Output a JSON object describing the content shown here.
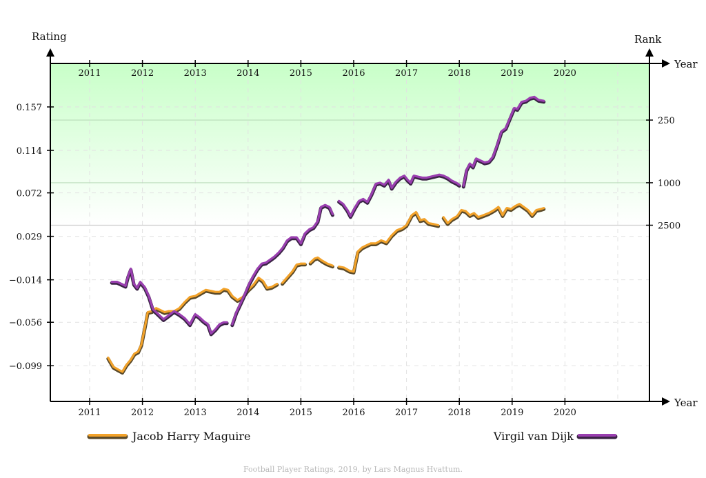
{
  "chart_data": {
    "type": "line",
    "axes": {
      "left_label": "Rating",
      "right_label": "Rank",
      "x_label": "Year",
      "x_ticks": [
        "2011",
        "2012",
        "2013",
        "2014",
        "2015",
        "2016",
        "2017",
        "2018",
        "2019",
        "2020"
      ],
      "x_range": [
        2010.7,
        2022.0
      ],
      "y_range": [
        -0.135,
        0.2
      ],
      "y_ticks": [
        {
          "value": 0.157,
          "label": "0.157"
        },
        {
          "value": 0.114,
          "label": "0.114"
        },
        {
          "value": 0.072,
          "label": "0.072"
        },
        {
          "value": 0.029,
          "label": "0.029"
        },
        {
          "value": -0.014,
          "label": "−0.014"
        },
        {
          "value": -0.056,
          "label": "−0.056"
        },
        {
          "value": -0.099,
          "label": "−0.099"
        }
      ],
      "rank_ticks": [
        {
          "rating": 0.144,
          "label": "250"
        },
        {
          "rating": 0.082,
          "label": "1000"
        },
        {
          "rating": 0.04,
          "label": "2500"
        }
      ],
      "grid": true,
      "top_band": {
        "from": 0.04,
        "to": 0.2,
        "color": "#c8ffc8"
      }
    },
    "series": [
      {
        "name": "Jacob Harry Maguire",
        "color": "#f2a22a",
        "legend_position": "bottom-left",
        "segments": [
          [
            [
              2011.35,
              -0.091
            ],
            [
              2011.45,
              -0.1
            ],
            [
              2011.55,
              -0.103
            ],
            [
              2011.62,
              -0.105
            ],
            [
              2011.7,
              -0.098
            ],
            [
              2011.78,
              -0.093
            ],
            [
              2011.85,
              -0.087
            ],
            [
              2011.92,
              -0.085
            ],
            [
              2011.98,
              -0.078
            ],
            [
              2012.05,
              -0.06
            ],
            [
              2012.1,
              -0.046
            ],
            [
              2012.18,
              -0.045
            ],
            [
              2012.26,
              -0.042
            ],
            [
              2012.34,
              -0.044
            ],
            [
              2012.42,
              -0.046
            ],
            [
              2012.5,
              -0.045
            ],
            [
              2012.6,
              -0.045
            ],
            [
              2012.7,
              -0.042
            ],
            [
              2012.8,
              -0.036
            ],
            [
              2012.9,
              -0.031
            ],
            [
              2013.0,
              -0.03
            ],
            [
              2013.1,
              -0.027
            ],
            [
              2013.2,
              -0.024
            ],
            [
              2013.3,
              -0.025
            ],
            [
              2013.38,
              -0.026
            ],
            [
              2013.46,
              -0.026
            ],
            [
              2013.54,
              -0.023
            ],
            [
              2013.62,
              -0.024
            ],
            [
              2013.7,
              -0.03
            ],
            [
              2013.8,
              -0.034
            ],
            [
              2013.9,
              -0.031
            ],
            [
              2014.0,
              -0.024
            ],
            [
              2014.1,
              -0.019
            ],
            [
              2014.2,
              -0.012
            ],
            [
              2014.28,
              -0.015
            ],
            [
              2014.36,
              -0.022
            ],
            [
              2014.45,
              -0.021
            ],
            [
              2014.55,
              -0.018
            ]
          ],
          [
            [
              2014.65,
              -0.017
            ],
            [
              2014.75,
              -0.011
            ],
            [
              2014.85,
              -0.005
            ],
            [
              2014.92,
              0.001
            ],
            [
              2015.0,
              0.002
            ],
            [
              2015.08,
              0.002
            ]
          ],
          [
            [
              2015.18,
              0.003
            ],
            [
              2015.26,
              0.007
            ],
            [
              2015.32,
              0.008
            ],
            [
              2015.4,
              0.005
            ],
            [
              2015.5,
              0.002
            ],
            [
              2015.6,
              0.0
            ]
          ],
          [
            [
              2015.72,
              -0.001
            ],
            [
              2015.82,
              -0.002
            ],
            [
              2015.92,
              -0.005
            ],
            [
              2016.0,
              -0.006
            ],
            [
              2016.08,
              0.014
            ],
            [
              2016.16,
              0.018
            ],
            [
              2016.24,
              0.02
            ],
            [
              2016.32,
              0.022
            ],
            [
              2016.42,
              0.022
            ],
            [
              2016.52,
              0.025
            ],
            [
              2016.62,
              0.023
            ],
            [
              2016.72,
              0.03
            ],
            [
              2016.82,
              0.035
            ],
            [
              2016.92,
              0.037
            ],
            [
              2017.0,
              0.04
            ],
            [
              2017.1,
              0.05
            ],
            [
              2017.18,
              0.053
            ],
            [
              2017.26,
              0.045
            ],
            [
              2017.34,
              0.046
            ],
            [
              2017.42,
              0.042
            ],
            [
              2017.52,
              0.041
            ],
            [
              2017.6,
              0.04
            ]
          ],
          [
            [
              2017.7,
              0.048
            ],
            [
              2017.78,
              0.042
            ],
            [
              2017.86,
              0.046
            ],
            [
              2017.96,
              0.049
            ],
            [
              2018.04,
              0.055
            ],
            [
              2018.12,
              0.054
            ],
            [
              2018.2,
              0.05
            ],
            [
              2018.28,
              0.052
            ],
            [
              2018.36,
              0.048
            ],
            [
              2018.46,
              0.05
            ],
            [
              2018.56,
              0.052
            ],
            [
              2018.66,
              0.055
            ],
            [
              2018.74,
              0.058
            ],
            [
              2018.82,
              0.05
            ],
            [
              2018.9,
              0.057
            ],
            [
              2018.98,
              0.056
            ],
            [
              2019.06,
              0.059
            ],
            [
              2019.14,
              0.061
            ],
            [
              2019.22,
              0.058
            ],
            [
              2019.3,
              0.055
            ],
            [
              2019.38,
              0.05
            ],
            [
              2019.46,
              0.055
            ],
            [
              2019.54,
              0.056
            ],
            [
              2019.6,
              0.057
            ]
          ]
        ]
      },
      {
        "name": "Virgil van Dijk",
        "color": "#9a3fb0",
        "legend_position": "bottom-right",
        "segments": [
          [
            [
              2011.42,
              -0.016
            ],
            [
              2011.52,
              -0.016
            ],
            [
              2011.6,
              -0.018
            ],
            [
              2011.68,
              -0.02
            ],
            [
              2011.73,
              -0.01
            ],
            [
              2011.78,
              -0.003
            ],
            [
              2011.84,
              -0.018
            ],
            [
              2011.9,
              -0.022
            ],
            [
              2011.96,
              -0.016
            ],
            [
              2012.04,
              -0.021
            ],
            [
              2012.12,
              -0.03
            ],
            [
              2012.2,
              -0.043
            ],
            [
              2012.3,
              -0.048
            ],
            [
              2012.4,
              -0.053
            ],
            [
              2012.5,
              -0.049
            ],
            [
              2012.6,
              -0.045
            ],
            [
              2012.7,
              -0.048
            ],
            [
              2012.8,
              -0.052
            ],
            [
              2012.9,
              -0.058
            ],
            [
              2013.0,
              -0.048
            ],
            [
              2013.08,
              -0.051
            ],
            [
              2013.16,
              -0.055
            ],
            [
              2013.24,
              -0.058
            ],
            [
              2013.3,
              -0.067
            ],
            [
              2013.38,
              -0.063
            ],
            [
              2013.46,
              -0.058
            ],
            [
              2013.54,
              -0.056
            ],
            [
              2013.6,
              -0.056
            ]
          ],
          [
            [
              2013.7,
              -0.058
            ],
            [
              2013.78,
              -0.046
            ],
            [
              2013.86,
              -0.037
            ],
            [
              2013.94,
              -0.028
            ],
            [
              2014.02,
              -0.018
            ],
            [
              2014.1,
              -0.01
            ],
            [
              2014.18,
              -0.003
            ],
            [
              2014.26,
              0.002
            ],
            [
              2014.34,
              0.003
            ],
            [
              2014.42,
              0.006
            ],
            [
              2014.5,
              0.009
            ],
            [
              2014.58,
              0.013
            ],
            [
              2014.66,
              0.018
            ],
            [
              2014.74,
              0.025
            ],
            [
              2014.82,
              0.028
            ],
            [
              2014.92,
              0.028
            ],
            [
              2015.0,
              0.022
            ],
            [
              2015.08,
              0.032
            ],
            [
              2015.16,
              0.036
            ],
            [
              2015.24,
              0.038
            ],
            [
              2015.32,
              0.044
            ],
            [
              2015.38,
              0.058
            ],
            [
              2015.46,
              0.06
            ],
            [
              2015.54,
              0.058
            ],
            [
              2015.6,
              0.051
            ]
          ],
          [
            [
              2015.72,
              0.064
            ],
            [
              2015.8,
              0.061
            ],
            [
              2015.88,
              0.055
            ],
            [
              2015.94,
              0.049
            ],
            [
              2016.02,
              0.057
            ],
            [
              2016.1,
              0.064
            ],
            [
              2016.18,
              0.066
            ],
            [
              2016.26,
              0.063
            ],
            [
              2016.34,
              0.071
            ],
            [
              2016.42,
              0.081
            ],
            [
              2016.5,
              0.082
            ],
            [
              2016.58,
              0.08
            ],
            [
              2016.66,
              0.085
            ],
            [
              2016.72,
              0.077
            ],
            [
              2016.8,
              0.083
            ],
            [
              2016.88,
              0.087
            ],
            [
              2016.96,
              0.089
            ],
            [
              2017.02,
              0.085
            ],
            [
              2017.08,
              0.082
            ],
            [
              2017.14,
              0.089
            ],
            [
              2017.22,
              0.088
            ],
            [
              2017.3,
              0.087
            ],
            [
              2017.38,
              0.087
            ],
            [
              2017.46,
              0.088
            ],
            [
              2017.54,
              0.089
            ],
            [
              2017.62,
              0.09
            ],
            [
              2017.7,
              0.089
            ],
            [
              2017.78,
              0.087
            ],
            [
              2017.86,
              0.084
            ],
            [
              2017.94,
              0.082
            ],
            [
              2018.0,
              0.08
            ]
          ],
          [
            [
              2018.08,
              0.079
            ],
            [
              2018.14,
              0.095
            ],
            [
              2018.2,
              0.101
            ],
            [
              2018.26,
              0.098
            ],
            [
              2018.32,
              0.106
            ],
            [
              2018.4,
              0.104
            ],
            [
              2018.48,
              0.102
            ],
            [
              2018.56,
              0.103
            ],
            [
              2018.64,
              0.108
            ],
            [
              2018.72,
              0.12
            ],
            [
              2018.8,
              0.133
            ],
            [
              2018.88,
              0.136
            ],
            [
              2018.96,
              0.146
            ],
            [
              2019.04,
              0.156
            ],
            [
              2019.1,
              0.155
            ],
            [
              2019.18,
              0.162
            ],
            [
              2019.26,
              0.163
            ],
            [
              2019.34,
              0.166
            ],
            [
              2019.42,
              0.167
            ],
            [
              2019.5,
              0.164
            ],
            [
              2019.6,
              0.163
            ]
          ]
        ]
      }
    ]
  },
  "credit": "Football Player Ratings, 2019, by Lars Magnus Hvattum."
}
